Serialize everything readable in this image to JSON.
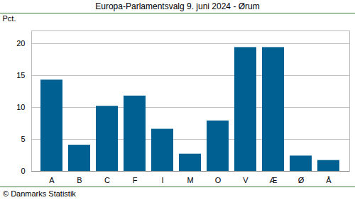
{
  "chart_data": {
    "type": "bar",
    "title": "Europa-Parlamentsvalg 9. juni 2024 - Ørum",
    "y_label": "Pct.",
    "caption": "© Danmarks Statistik",
    "categories": [
      "A",
      "B",
      "C",
      "F",
      "I",
      "M",
      "O",
      "V",
      "Æ",
      "Ø",
      "Å"
    ],
    "values": [
      14.3,
      4.1,
      10.2,
      11.8,
      6.6,
      2.7,
      7.9,
      19.4,
      19.4,
      2.4,
      1.7
    ],
    "color": "#006092",
    "ylim": [
      0,
      22
    ],
    "yticks": [
      0,
      5,
      10,
      15,
      20
    ],
    "grid": true
  }
}
